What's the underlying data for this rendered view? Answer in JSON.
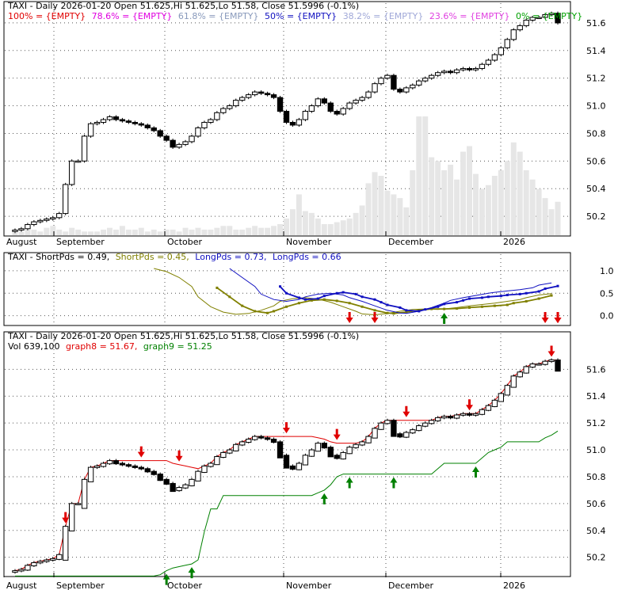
{
  "colors": {
    "red": "#e00000",
    "magenta": "#e000e0",
    "slategray": "#8899bb",
    "blue": "#1010c0",
    "lightblue": "#a0a8d8",
    "pink": "#e040e0",
    "green": "#00a000",
    "olive": "#707000",
    "candle": "#000000",
    "volume": "#e6e6e6",
    "grid": "#555555"
  },
  "chart_data": [
    {
      "type": "candlestick",
      "title": "TAXI - Daily 2026-01-20 Open 51.625,Hi 51.625,Lo 51.58, Close 51.5996 (-0.1%)",
      "fib_legend": [
        {
          "label": "100% = {EMPTY}",
          "color": "#e00000"
        },
        {
          "label": "78.6% = {EMPTY}",
          "color": "#e000e0"
        },
        {
          "label": "61.8% = {EMPTY}",
          "color": "#8899bb"
        },
        {
          "label": "50% = {EMPTY}",
          "color": "#1010c0"
        },
        {
          "label": "38.2% = {EMPTY}",
          "color": "#a0a8d8"
        },
        {
          "label": "23.6% = {EMPTY}",
          "color": "#e040e0"
        },
        {
          "label": "0% = {EMPTY}",
          "color": "#00a000"
        }
      ],
      "yticks": [
        "51.6",
        "51.4",
        "51.2",
        "51.0",
        "50.8",
        "50.6",
        "50.4",
        "50.2"
      ],
      "xticks": [
        "August",
        "September",
        "October",
        "November",
        "December",
        "2026"
      ],
      "ylim": [
        50.08,
        51.72
      ],
      "close": [
        50.1,
        50.11,
        50.14,
        50.16,
        50.17,
        50.18,
        50.19,
        50.22,
        50.43,
        50.6,
        50.6,
        50.78,
        50.87,
        50.88,
        50.9,
        50.92,
        50.9,
        50.89,
        50.88,
        50.87,
        50.86,
        50.84,
        50.82,
        50.78,
        50.75,
        50.7,
        50.72,
        50.74,
        50.78,
        50.84,
        50.88,
        50.9,
        50.95,
        50.98,
        51.0,
        51.04,
        51.06,
        51.08,
        51.1,
        51.09,
        51.08,
        51.06,
        50.96,
        50.88,
        50.86,
        50.9,
        50.96,
        51.0,
        51.05,
        51.02,
        50.96,
        50.94,
        50.98,
        51.02,
        51.04,
        51.06,
        51.1,
        51.16,
        51.2,
        51.22,
        51.12,
        51.1,
        51.13,
        51.15,
        51.18,
        51.2,
        51.22,
        51.24,
        51.25,
        51.24,
        51.26,
        51.27,
        51.26,
        51.27,
        51.3,
        51.33,
        51.37,
        51.42,
        51.48,
        51.55,
        51.58,
        51.62,
        51.64,
        51.64,
        51.66,
        51.67,
        51.6
      ],
      "volume": [
        2,
        2,
        3,
        3,
        2,
        4,
        5,
        3,
        2,
        4,
        3,
        2,
        2,
        2,
        3,
        4,
        3,
        5,
        3,
        3,
        4,
        2,
        3,
        2,
        3,
        3,
        2,
        4,
        3,
        4,
        3,
        3,
        4,
        5,
        5,
        3,
        3,
        4,
        5,
        4,
        4,
        5,
        6,
        9,
        14,
        22,
        13,
        12,
        9,
        6,
        6,
        7,
        8,
        9,
        12,
        16,
        28,
        34,
        32,
        24,
        22,
        20,
        15,
        35,
        64,
        64,
        42,
        40,
        35,
        38,
        30,
        45,
        48,
        33,
        25,
        27,
        32,
        35,
        40,
        50,
        45,
        35,
        30,
        25,
        20,
        14,
        18
      ]
    },
    {
      "type": "line",
      "title": "TAXI - ShortPds = 0.49, ShortPds = 0.45, LongPds = 0.73, LongPds = 0.66",
      "legend": [
        {
          "label": "TAXI - ShortPds = 0.49,",
          "color": "#000000"
        },
        {
          "label": "ShortPds = 0.45,",
          "color": "#808000"
        },
        {
          "label": "LongPds = 0.73,",
          "color": "#1010c0"
        },
        {
          "label": "LongPds = 0.66",
          "color": "#1010c0"
        }
      ],
      "yticks": [
        "1.0",
        "0.5",
        "0.0"
      ],
      "ylim": [
        -0.2,
        1.35
      ],
      "series": [
        {
          "x0": 22,
          "values": [
            1.05,
            0.98,
            0.85,
            0.65,
            0.42,
            0.2,
            0.08,
            0.03,
            0.05,
            0.12,
            0.22,
            0.32,
            0.38,
            0.4,
            0.37,
            0.3,
            0.2,
            0.1,
            0.04,
            0.02,
            0.05,
            0.1,
            0.14,
            0.15,
            0.14,
            0.15,
            0.18,
            0.22,
            0.25,
            0.28,
            0.32,
            0.36,
            0.4,
            0.46,
            0.49
          ]
        },
        {
          "x0": 32,
          "values": [
            0.62,
            0.42,
            0.22,
            0.1,
            0.06,
            0.1,
            0.2,
            0.28,
            0.34,
            0.36,
            0.33,
            0.28,
            0.2,
            0.12,
            0.06,
            0.05,
            0.08,
            0.12,
            0.15,
            0.15,
            0.16,
            0.18,
            0.2,
            0.22,
            0.24,
            0.28,
            0.32,
            0.38,
            0.45
          ]
        },
        {
          "x0": 34,
          "values": [
            1.05,
            0.85,
            0.65,
            0.48,
            0.36,
            0.32,
            0.36,
            0.42,
            0.48,
            0.5,
            0.46,
            0.4,
            0.32,
            0.22,
            0.12,
            0.06,
            0.05,
            0.1,
            0.18,
            0.28,
            0.34,
            0.4,
            0.45,
            0.5,
            0.52,
            0.55,
            0.58,
            0.62,
            0.68,
            0.73
          ]
        },
        {
          "x0": 42,
          "values": [
            0.65,
            0.5,
            0.4,
            0.36,
            0.38,
            0.44,
            0.5,
            0.52,
            0.48,
            0.42,
            0.36,
            0.3,
            0.24,
            0.18,
            0.12,
            0.1,
            0.14,
            0.2,
            0.26,
            0.3,
            0.34,
            0.38,
            0.4,
            0.42,
            0.44,
            0.46,
            0.48,
            0.5,
            0.54,
            0.6,
            0.66
          ]
        }
      ],
      "arrows_down_at": [
        53,
        57,
        84,
        92,
        94,
        96
      ],
      "arrows_up_at": [
        68
      ]
    },
    {
      "type": "candlestick",
      "title": "TAXI - Daily 2026-01-20 Open 51.625,Hi 51.625,Lo 51.58, Close 51.5996 (-0.1%)",
      "subtitle": "Vol 639,100 graph8 = 51.67, graph9 = 51.25",
      "sub_legend": [
        {
          "label": "Vol 639,100",
          "color": "#000000"
        },
        {
          "label": "graph8 = 51.67,",
          "color": "#e00000"
        },
        {
          "label": "graph9 = 51.25",
          "color": "#008000"
        }
      ],
      "yticks": [
        "51.6",
        "51.4",
        "51.2",
        "51.0",
        "50.8",
        "50.6",
        "50.4",
        "50.2"
      ],
      "xticks": [
        "August",
        "September",
        "October",
        "November",
        "December",
        "2026"
      ],
      "ylim": [
        50.08,
        51.72
      ],
      "arrows_down_at": [
        8,
        20,
        26,
        43,
        51,
        62,
        72,
        85
      ],
      "arrows_up_at": [
        24,
        28,
        49,
        53,
        60,
        73
      ]
    }
  ]
}
